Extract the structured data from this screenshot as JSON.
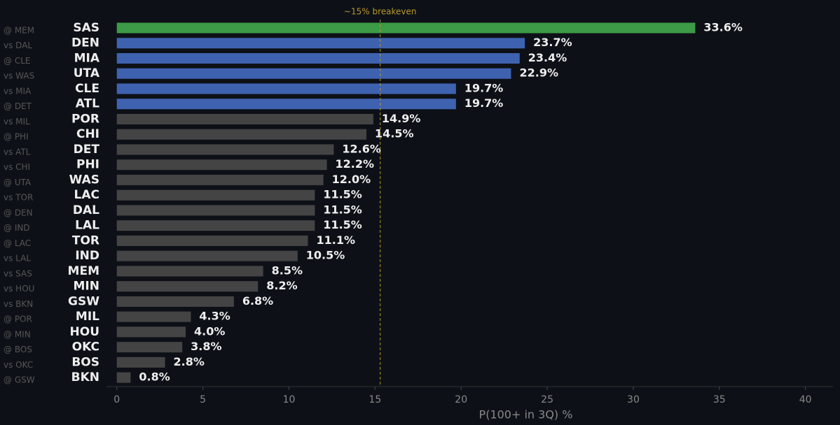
{
  "chart_data": {
    "type": "barh",
    "categories": [
      "SAS",
      "DEN",
      "MIA",
      "UTA",
      "CLE",
      "ATL",
      "POR",
      "CHI",
      "DET",
      "PHI",
      "WAS",
      "LAC",
      "DAL",
      "LAL",
      "TOR",
      "IND",
      "MEM",
      "MIN",
      "GSW",
      "MIL",
      "HOU",
      "OKC",
      "BOS",
      "BKN"
    ],
    "matchups": [
      "@ MEM",
      "vs DAL",
      "@ CLE",
      "vs WAS",
      "vs MIA",
      "@ DET",
      "vs MIL",
      "@ PHI",
      "vs ATL",
      "vs CHI",
      "@ UTA",
      "vs TOR",
      "@ DEN",
      "@ IND",
      "@ LAC",
      "vs LAL",
      "vs SAS",
      "vs HOU",
      "vs BKN",
      "@ POR",
      "@ MIN",
      "@ BOS",
      "vs OKC",
      "@ GSW"
    ],
    "values": [
      33.6,
      23.7,
      23.4,
      22.9,
      19.7,
      19.7,
      14.9,
      14.5,
      12.6,
      12.2,
      12.0,
      11.5,
      11.5,
      11.5,
      11.1,
      10.5,
      8.5,
      8.2,
      6.8,
      4.3,
      4.0,
      3.8,
      2.8,
      0.8
    ],
    "value_labels": [
      "33.6%",
      "23.7%",
      "23.4%",
      "22.9%",
      "19.7%",
      "19.7%",
      "14.9%",
      "14.5%",
      "12.6%",
      "12.2%",
      "12.0%",
      "11.5%",
      "11.5%",
      "11.5%",
      "11.1%",
      "10.5%",
      "8.5%",
      "8.2%",
      "6.8%",
      "4.3%",
      "4.0%",
      "3.8%",
      "2.8%",
      "0.8%"
    ],
    "colors": [
      "#3d9a46",
      "#3f62b0",
      "#3f62b0",
      "#3f62b0",
      "#3f62b0",
      "#3f62b0",
      "#444444",
      "#444444",
      "#444444",
      "#444444",
      "#444444",
      "#444444",
      "#444444",
      "#444444",
      "#444444",
      "#444444",
      "#444444",
      "#444444",
      "#444444",
      "#444444",
      "#444444",
      "#444444",
      "#444444",
      "#444444"
    ],
    "xlabel": "P(100+ in 3Q) %",
    "xlim": [
      -0.6,
      41.6
    ],
    "xticks": [
      0,
      5,
      10,
      15,
      20,
      25,
      30,
      35,
      40
    ],
    "reference_line": {
      "value": 15.3,
      "label": "~15% breakeven",
      "color": "#b8962a"
    }
  }
}
